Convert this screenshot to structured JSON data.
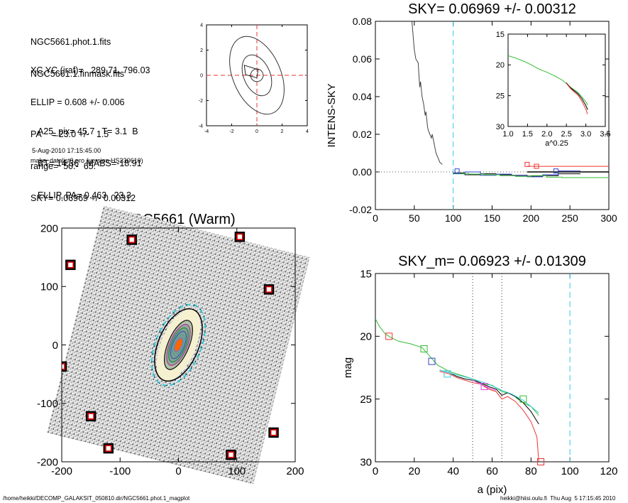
{
  "header": {
    "files": [
      "NGC5661.phot.1.fits",
      "NGC5661.1.finmask.fits"
    ],
    "params": [
      "XC,YC (iraf)=   289.71, 796.03",
      "ELLIP = 0.608 +/- 0.006",
      "PA    = 23.0 +/-   1.5",
      "range=  50.-  65.",
      "SKY= 0.06969 +/- 0.00312"
    ],
    "measures": [
      "A25_pix= 45.7   T= 3.1  B",
      "BT= 14.36   MABS=-18.91",
      "ELLIP, PA= 0.463   23.3"
    ],
    "timestamp": "5-Aug-2010 17:15:45.00",
    "program": "make_datalist0.pro (version HS230610)"
  },
  "footer": {
    "path": "/home/heikki/DECOMP_GALAKSIT_050810.dir/NGC5661.phot.1_magplot",
    "signature": "heikki@hiisi.oulu.fi  Thu Aug  5 17:15:45 2010"
  },
  "colors": {
    "cyan": "#33ccdd",
    "red": "#ee3333",
    "green": "#33bb33",
    "blue": "#3344cc",
    "magenta": "#dd44dd",
    "black": "#000000",
    "gray": "#888888"
  },
  "chart_data": [
    {
      "type": "line",
      "panel": "ellipse-contours",
      "title": "",
      "xlabel": "",
      "ylabel": "",
      "xlim": [
        -4,
        4
      ],
      "ylim": [
        -4,
        4
      ],
      "xticks": [
        -4,
        -2,
        0,
        2,
        4
      ],
      "yticks": [
        -4,
        -2,
        0,
        2,
        4
      ],
      "crosshair": [
        0,
        0
      ],
      "contours": [
        {
          "a": 0.5,
          "b": 0.5
        },
        {
          "a": 1.7,
          "b": 1.05
        },
        {
          "a": 3.25,
          "b": 1.9
        }
      ],
      "contour_pa_deg": 23,
      "inner_polygon": [
        [
          -1.0,
          0.8
        ],
        [
          0.1,
          0.45
        ],
        [
          0.0,
          -0.2
        ],
        [
          -0.9,
          0.05
        ]
      ]
    },
    {
      "type": "line",
      "panel": "intensity-profile",
      "title": "SKY= 0.06969 +/- 0.00312",
      "xlabel": "",
      "ylabel": "INTENS-SKY",
      "xlim": [
        0,
        300
      ],
      "ylim": [
        -0.02,
        0.08
      ],
      "xticks": [
        0,
        50,
        100,
        150,
        200,
        250,
        300
      ],
      "yticks": [
        -0.02,
        0.0,
        0.02,
        0.04,
        0.06,
        0.08
      ],
      "zero_line": 0,
      "sky_marker_x": 100,
      "profile": {
        "x": [
          42,
          47,
          50,
          52,
          55,
          57,
          58,
          60,
          62,
          64,
          65,
          67,
          68,
          70,
          72,
          73,
          75,
          77,
          78,
          80,
          83,
          86
        ],
        "y": [
          0.09,
          0.08,
          0.065,
          0.06,
          0.058,
          0.045,
          0.048,
          0.04,
          0.036,
          0.03,
          0.032,
          0.024,
          0.022,
          0.02,
          0.018,
          0.02,
          0.016,
          0.012,
          0.01,
          0.008,
          0.005,
          0.004
        ]
      },
      "sky_steps": [
        {
          "name": "black",
          "x": [
            100,
            115,
            135,
            155,
            175,
            195,
            215,
            235,
            263
          ],
          "y": [
            -0.0005,
            -0.0015,
            -0.001,
            -0.0015,
            -0.0018,
            -0.0022,
            -0.002,
            -0.001,
            -0.0008
          ]
        },
        {
          "name": "blue",
          "x": [
            100,
            115,
            135,
            155,
            175,
            195,
            215,
            235,
            263
          ],
          "y": [
            -0.001,
            0.0,
            -0.0018,
            -0.0012,
            -0.002,
            -0.0026,
            -0.0015,
            0.0005,
            0.0
          ]
        },
        {
          "name": "green",
          "x": [
            100,
            120,
            140,
            160,
            180,
            200,
            220,
            240,
            300
          ],
          "y": [
            -0.0008,
            -0.0012,
            -0.0015,
            -0.002,
            -0.0024,
            -0.002,
            -0.0028,
            -0.003,
            -0.0035
          ]
        },
        {
          "name": "red",
          "x": [
            195,
            300
          ],
          "y": [
            0.003,
            0.003
          ]
        },
        {
          "name": "black-mean",
          "x": [
            195,
            300
          ],
          "y": [
            0.0,
            0.0
          ]
        }
      ],
      "markers": [
        {
          "name": "red",
          "x": [
            195,
            207
          ],
          "y": [
            0.004,
            0.003
          ]
        },
        {
          "name": "blue",
          "x": [
            105,
            232
          ],
          "y": [
            0.0005,
            0.0005
          ]
        }
      ],
      "inset": {
        "xlabel": "a^0.25",
        "xlim": [
          1.0,
          3.5
        ],
        "ylim": [
          15,
          30
        ],
        "xticks": [
          1.0,
          1.5,
          2.0,
          2.5,
          3.0,
          3.5
        ],
        "yticks": [
          15,
          20,
          25,
          30
        ],
        "series": [
          {
            "name": "green",
            "x": [
              1.0,
              1.2,
              1.4,
              1.6,
              1.8,
              2.0,
              2.1,
              2.2,
              2.4,
              2.6,
              2.8,
              2.9,
              3.0,
              3.05
            ],
            "y": [
              18.5,
              18.9,
              19.4,
              20.0,
              20.7,
              21.2,
              21.5,
              21.8,
              22.5,
              23.6,
              24.5,
              25.2,
              26.0,
              26.5
            ]
          },
          {
            "name": "black",
            "x": [
              2.5,
              2.6,
              2.7,
              2.8,
              2.9,
              3.0,
              3.05
            ],
            "y": [
              22.9,
              23.7,
              24.2,
              24.7,
              25.5,
              26.6,
              27.3
            ]
          },
          {
            "name": "red",
            "x": [
              2.5,
              2.6,
              2.7,
              2.8,
              2.9,
              3.0,
              3.04
            ],
            "y": [
              23.0,
              23.8,
              24.4,
              24.9,
              25.9,
              27.2,
              28.0
            ]
          }
        ]
      }
    },
    {
      "type": "scatter",
      "panel": "galaxy-image",
      "title": "NGC5661 (Warm)",
      "xlabel": "",
      "ylabel": "",
      "xlim": [
        -200,
        200
      ],
      "ylim": [
        -200,
        200
      ],
      "xticks": [
        -200,
        -100,
        0,
        100,
        200
      ],
      "yticks": [
        -200,
        -100,
        0,
        100,
        200
      ],
      "mask_boxes": [
        [
          -80,
          180
        ],
        [
          105,
          185
        ],
        [
          -185,
          137
        ],
        [
          155,
          95
        ],
        [
          -200,
          -37
        ],
        [
          -150,
          -122
        ],
        [
          -120,
          -177
        ],
        [
          90,
          -188
        ],
        [
          163,
          -150
        ]
      ],
      "galaxy": {
        "center": [
          0,
          0
        ],
        "pa_deg": 23,
        "isophotes_a": [
          10,
          20,
          30,
          40,
          50,
          60,
          72
        ],
        "axis_ratio": 0.4,
        "outer_ellipse_a": 105
      }
    },
    {
      "type": "line",
      "panel": "magnitude-profile",
      "title": "SKY_m=  0.06923 +/- 0.01309",
      "xlabel": "a (pix)",
      "ylabel": "mag",
      "xlim": [
        0,
        120
      ],
      "ylim": [
        15,
        30
      ],
      "xticks": [
        0,
        20,
        40,
        60,
        80,
        100,
        120
      ],
      "yticks": [
        15,
        20,
        25,
        30
      ],
      "vlines_dotted": [
        50,
        65
      ],
      "vline_dashed": 100,
      "series": [
        {
          "name": "green",
          "x": [
            0,
            2,
            5,
            8,
            12,
            18,
            24,
            28,
            32,
            38,
            44,
            50,
            55,
            60,
            65,
            70,
            75,
            80,
            84
          ],
          "y": [
            18.6,
            19.2,
            19.8,
            20.1,
            20.4,
            20.6,
            20.9,
            21.6,
            22.3,
            22.8,
            23.1,
            23.4,
            23.8,
            23.9,
            24.4,
            24.6,
            25.2,
            25.6,
            26.3
          ]
        },
        {
          "name": "black",
          "x": [
            33,
            38,
            42,
            46,
            50,
            54,
            58,
            62,
            65,
            68,
            72,
            76,
            80,
            84
          ],
          "y": [
            22.7,
            22.9,
            23.2,
            23.4,
            23.5,
            23.7,
            24.0,
            24.2,
            24.7,
            24.5,
            24.8,
            25.3,
            26.0,
            27.0
          ]
        },
        {
          "name": "red",
          "x": [
            33,
            38,
            42,
            46,
            50,
            54,
            58,
            62,
            65,
            68,
            72,
            76,
            80,
            83,
            84
          ],
          "y": [
            22.8,
            23.0,
            23.3,
            23.5,
            23.7,
            23.8,
            24.2,
            24.4,
            25.0,
            24.8,
            25.2,
            25.9,
            26.8,
            28.0,
            30.0
          ]
        },
        {
          "name": "cyan",
          "x": [
            33,
            40,
            50,
            58,
            65,
            70,
            76,
            80,
            84
          ],
          "y": [
            22.7,
            23.0,
            23.4,
            23.8,
            24.3,
            24.6,
            25.1,
            25.6,
            26.1
          ]
        },
        {
          "name": "magenta",
          "x": [
            50,
            54,
            58,
            62
          ],
          "y": [
            23.5,
            23.8,
            24.1,
            24.3
          ]
        }
      ],
      "markers": [
        {
          "name": "red",
          "x": [
            7,
            85
          ],
          "y": [
            20.0,
            30.0
          ]
        },
        {
          "name": "green",
          "x": [
            25,
            76
          ],
          "y": [
            21.0,
            25.0
          ]
        },
        {
          "name": "blue",
          "x": [
            29
          ],
          "y": [
            22.0
          ]
        },
        {
          "name": "cyan",
          "x": [
            37
          ],
          "y": [
            23.0
          ]
        },
        {
          "name": "magenta",
          "x": [
            56
          ],
          "y": [
            24.0
          ]
        }
      ]
    }
  ]
}
